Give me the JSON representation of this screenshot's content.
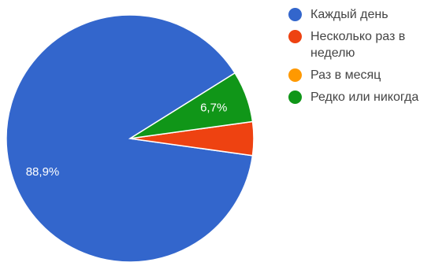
{
  "chart_data": {
    "type": "pie",
    "slices": [
      {
        "label": "Каждый день",
        "value": 88.9,
        "color": "#3366cc",
        "display": "88,9%"
      },
      {
        "label": "Несколько раз в неделю",
        "value": 4.4,
        "color": "#ee4211",
        "display": ""
      },
      {
        "label": "Раз в месяц",
        "value": 0,
        "color": "#ff9900",
        "display": ""
      },
      {
        "label": "Редко или никогда",
        "value": 6.7,
        "color": "#109618",
        "display": "6,7%"
      }
    ],
    "legend_position": "right"
  }
}
